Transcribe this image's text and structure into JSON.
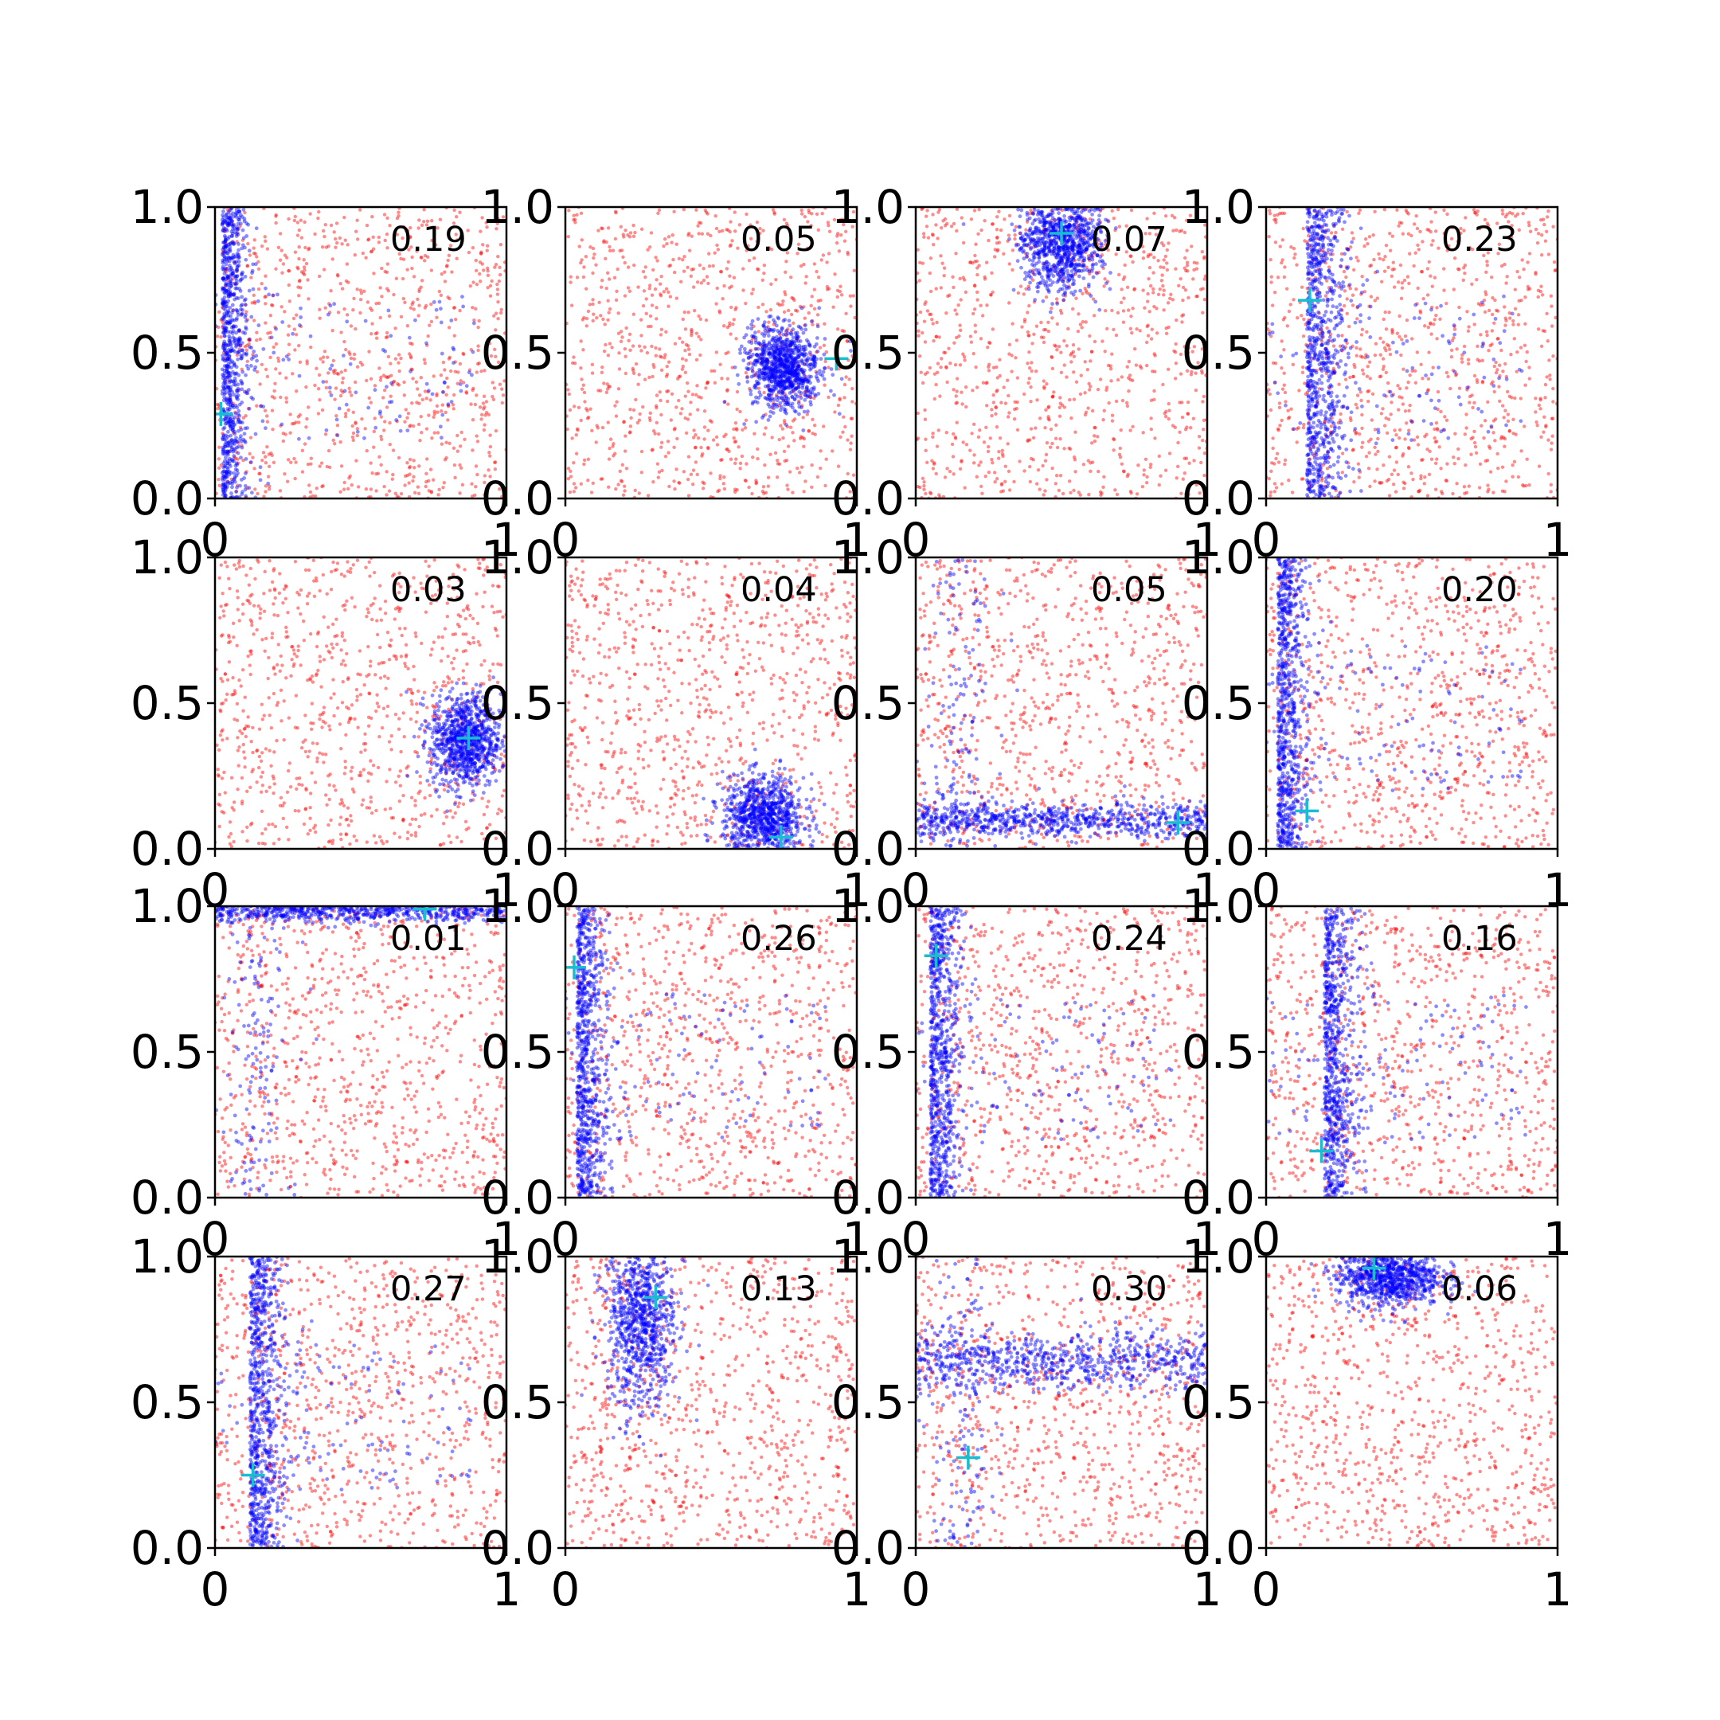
{
  "chart_data": {
    "type": "scatter",
    "grid": false,
    "layout": "4x4",
    "xlim": [
      0,
      1
    ],
    "ylim": [
      0,
      1
    ],
    "x_ticks": [
      "0",
      "1"
    ],
    "y_ticks": [
      "0.0",
      "0.5",
      "1.0"
    ],
    "colors": {
      "background_points": "#ff0000",
      "cluster_points": "#0000ff",
      "marker": "#17becf",
      "axes": "#000000"
    },
    "panels": [
      {
        "score": "0.19",
        "marker": [
          0.02,
          0.29
        ],
        "blue": {
          "shape": "vband",
          "x": 0.025,
          "width": 0.05
        }
      },
      {
        "score": "0.05",
        "marker": [
          0.93,
          0.48
        ],
        "blue": {
          "shape": "blob",
          "cx": 0.75,
          "cy": 0.45,
          "sx": 0.06,
          "sy": 0.07
        }
      },
      {
        "score": "0.07",
        "marker": [
          0.5,
          0.91
        ],
        "blue": {
          "shape": "blob",
          "cx": 0.5,
          "cy": 0.88,
          "sx": 0.07,
          "sy": 0.08
        }
      },
      {
        "score": "0.23",
        "marker": [
          0.15,
          0.68
        ],
        "blue": {
          "shape": "vband",
          "x": 0.14,
          "width": 0.08
        }
      },
      {
        "score": "0.03",
        "marker": [
          0.87,
          0.38
        ],
        "blue": {
          "shape": "blob",
          "cx": 0.86,
          "cy": 0.37,
          "sx": 0.06,
          "sy": 0.08
        }
      },
      {
        "score": "0.04",
        "marker": [
          0.74,
          0.04
        ],
        "blue": {
          "shape": "blob",
          "cx": 0.68,
          "cy": 0.11,
          "sx": 0.07,
          "sy": 0.07
        }
      },
      {
        "score": "0.05",
        "marker": [
          0.9,
          0.09
        ],
        "blue": {
          "shape": "hband",
          "y": 0.1,
          "width": 0.03
        }
      },
      {
        "score": "0.20",
        "marker": [
          0.14,
          0.13
        ],
        "blue": {
          "shape": "vband",
          "x": 0.04,
          "width": 0.06
        }
      },
      {
        "score": "0.01",
        "marker": [
          0.72,
          0.99
        ],
        "blue": {
          "shape": "hband",
          "y": 0.985,
          "width": 0.02
        }
      },
      {
        "score": "0.26",
        "marker": [
          0.03,
          0.79
        ],
        "blue": {
          "shape": "vband",
          "x": 0.04,
          "width": 0.06
        }
      },
      {
        "score": "0.24",
        "marker": [
          0.07,
          0.83
        ],
        "blue": {
          "shape": "vband",
          "x": 0.05,
          "width": 0.06
        }
      },
      {
        "score": "0.16",
        "marker": [
          0.19,
          0.16
        ],
        "blue": {
          "shape": "vband",
          "x": 0.2,
          "width": 0.07
        }
      },
      {
        "score": "0.27",
        "marker": [
          0.13,
          0.25
        ],
        "blue": {
          "shape": "vband",
          "x": 0.12,
          "width": 0.07
        }
      },
      {
        "score": "0.13",
        "marker": [
          0.31,
          0.86
        ],
        "blue": {
          "shape": "blob",
          "cx": 0.26,
          "cy": 0.78,
          "sx": 0.06,
          "sy": 0.15
        }
      },
      {
        "score": "0.30",
        "marker": [
          0.18,
          0.31
        ],
        "blue": {
          "shape": "hband",
          "y": 0.64,
          "width": 0.05
        }
      },
      {
        "score": "0.06",
        "marker": [
          0.37,
          0.96
        ],
        "blue": {
          "shape": "blob",
          "cx": 0.42,
          "cy": 0.93,
          "sx": 0.09,
          "sy": 0.05
        }
      }
    ]
  }
}
